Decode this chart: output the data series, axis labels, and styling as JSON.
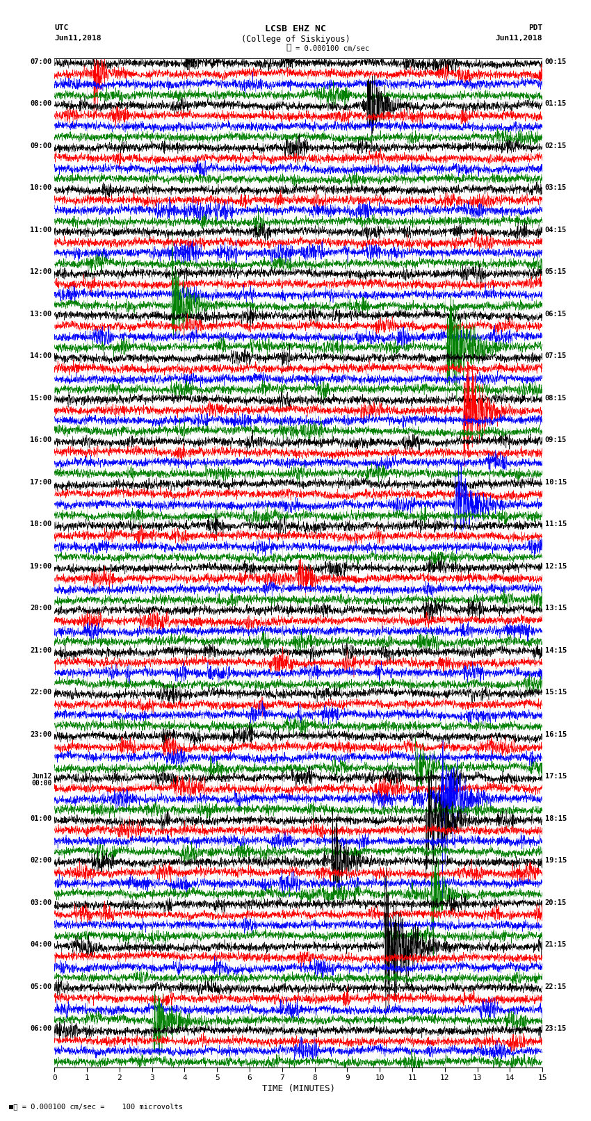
{
  "title_line1": "LCSB EHZ NC",
  "title_line2": "(College of Siskiyous)",
  "scale_label": "= 0.000100 cm/sec",
  "bottom_label": "= 0.000100 cm/sec =    100 microvolts",
  "utc_label": "UTC",
  "utc_date": "Jun11,2018",
  "pdt_label": "PDT",
  "pdt_date": "Jun11,2018",
  "xlabel": "TIME (MINUTES)",
  "left_times": [
    "07:00",
    "08:00",
    "09:00",
    "10:00",
    "11:00",
    "12:00",
    "13:00",
    "14:00",
    "15:00",
    "16:00",
    "17:00",
    "18:00",
    "19:00",
    "20:00",
    "21:00",
    "22:00",
    "23:00",
    "Jun12\n00:00",
    "01:00",
    "02:00",
    "03:00",
    "04:00",
    "05:00",
    "06:00"
  ],
  "right_times": [
    "00:15",
    "01:15",
    "02:15",
    "03:15",
    "04:15",
    "05:15",
    "06:15",
    "07:15",
    "08:15",
    "09:15",
    "10:15",
    "11:15",
    "12:15",
    "13:15",
    "14:15",
    "15:15",
    "16:15",
    "17:15",
    "18:15",
    "19:15",
    "20:15",
    "21:15",
    "22:15",
    "23:15"
  ],
  "trace_colors": [
    "black",
    "red",
    "blue",
    "green"
  ],
  "n_hours": 24,
  "traces_per_hour": 4,
  "minutes_per_trace": 15,
  "xmin": 0,
  "xmax": 15,
  "fig_width": 8.5,
  "fig_height": 16.13,
  "background_color": "white",
  "base_noise": 0.18,
  "event_prob": 0.12,
  "event_amp": 1.5,
  "vertical_lines": [
    1,
    2,
    3,
    4,
    5,
    6,
    7,
    8,
    9,
    10,
    11,
    12,
    13,
    14
  ],
  "lw": 0.35
}
